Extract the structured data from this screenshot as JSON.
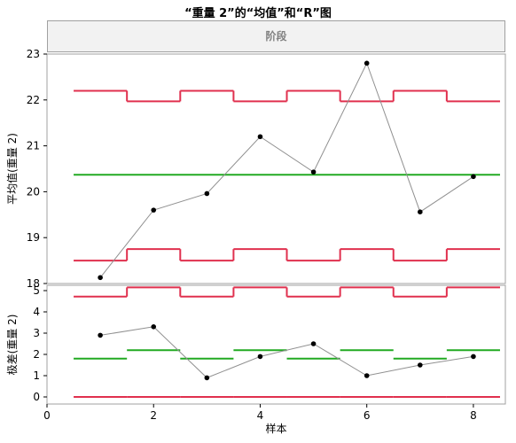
{
  "title": "“重量 2”的“均值”和“R”图",
  "phase_label": "阶段",
  "chart_data": [
    {
      "type": "line",
      "name": "xbar",
      "ylabel": "平均值(重量 2)",
      "ylim": [
        18,
        23
      ],
      "yticks": [
        "18",
        "19",
        "20",
        "21",
        "22",
        "23"
      ],
      "xlim": [
        0,
        8.6
      ],
      "x": [
        1,
        2,
        3,
        4,
        5,
        6,
        7,
        8
      ],
      "values": [
        18.13,
        19.6,
        19.96,
        21.2,
        20.43,
        22.8,
        19.56,
        20.33
      ],
      "ucl": [
        22.2,
        21.97,
        22.2,
        21.97,
        22.2,
        21.97,
        22.2,
        21.97
      ],
      "lcl": [
        18.5,
        18.75,
        18.5,
        18.75,
        18.5,
        18.75,
        18.5,
        18.75
      ],
      "center": 20.37,
      "limit_color": "#e0304e",
      "center_color": "#22aa22",
      "marker_color": "#000000",
      "line_color": "#909090"
    },
    {
      "type": "line",
      "name": "range",
      "ylabel": "极差(重量 2)",
      "xlabel": "样本",
      "ylim": [
        0,
        5
      ],
      "yticks": [
        "0",
        "1",
        "2",
        "3",
        "4",
        "5"
      ],
      "xlim": [
        0,
        8.6
      ],
      "xticks": [
        "0",
        "2",
        "4",
        "6",
        "8"
      ],
      "x": [
        1,
        2,
        3,
        4,
        5,
        6,
        7,
        8
      ],
      "values": [
        2.9,
        3.3,
        0.9,
        1.9,
        2.5,
        1.0,
        1.5,
        1.9
      ],
      "ucl": [
        4.72,
        5.15,
        4.72,
        5.15,
        4.72,
        5.15,
        4.72,
        5.15
      ],
      "lcl": [
        0.0,
        0.0,
        0.0,
        0.0,
        0.0,
        0.0,
        0.0,
        0.0
      ],
      "center": [
        1.8,
        2.2,
        1.8,
        2.2,
        1.8,
        2.2,
        1.8,
        2.2
      ],
      "limit_color": "#e0304e",
      "center_color": "#22aa22",
      "marker_color": "#000000",
      "line_color": "#909090"
    }
  ]
}
